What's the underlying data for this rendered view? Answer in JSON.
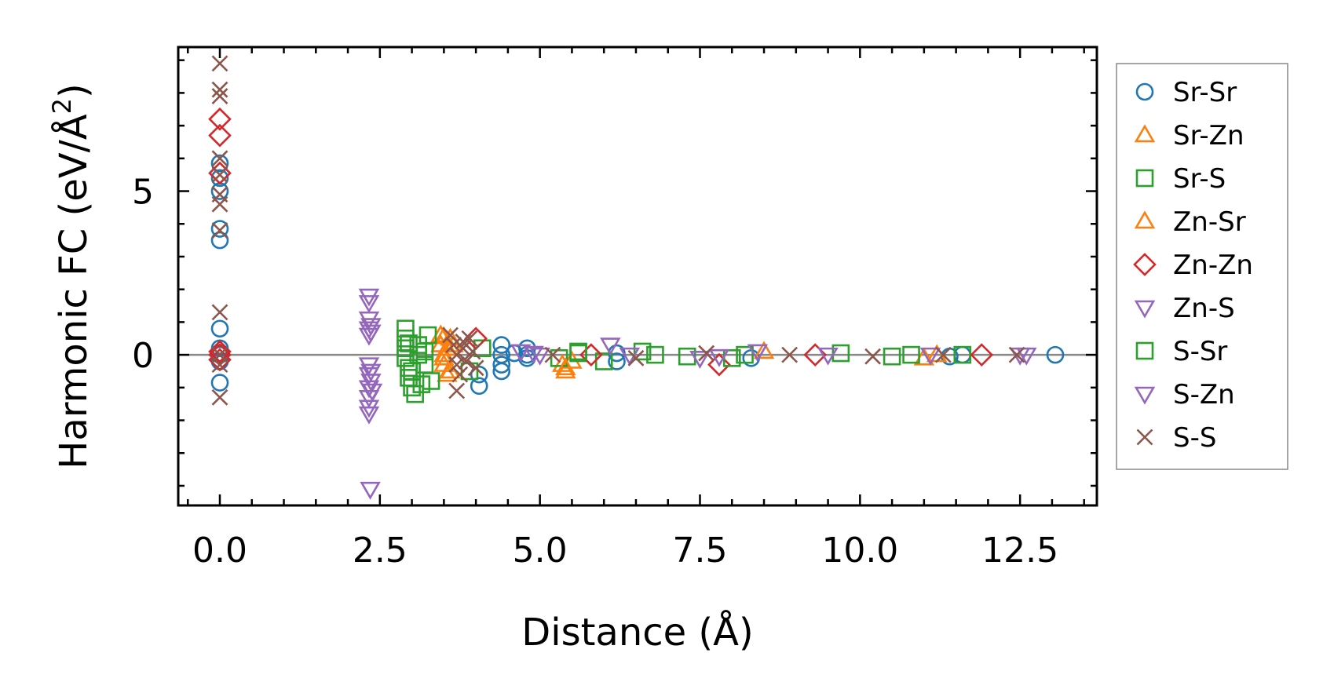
{
  "chart_data": {
    "type": "scatter",
    "title": "",
    "xlabel": "Distance (Å)",
    "ylabel_main": "Harmonic FC (eV/Å",
    "ylabel_sup": "2",
    "ylabel_end": ")",
    "xlim": [
      -0.65,
      13.7
    ],
    "ylim": [
      -4.6,
      9.4
    ],
    "xticks": [
      0.0,
      2.5,
      5.0,
      7.5,
      10.0,
      12.5
    ],
    "xtick_labels": [
      "0.0",
      "2.5",
      "5.0",
      "7.5",
      "10.0",
      "12.5"
    ],
    "yticks": [
      0,
      5
    ],
    "ytick_labels": [
      "0",
      "5"
    ],
    "grid": false,
    "zero_line": true,
    "legend_position": "outside-right",
    "series": [
      {
        "name": "Sr-Sr",
        "marker": "circle",
        "color": "#1f77b4",
        "x": [
          0,
          0,
          0,
          0,
          0,
          0,
          0,
          0,
          0,
          0,
          0,
          4.05,
          4.05,
          4.4,
          4.4,
          4.4,
          4.4,
          4.6,
          4.8,
          4.8,
          4.8,
          6.2,
          6.2,
          8.3,
          11.4,
          11.6,
          13.05
        ],
        "y": [
          5.85,
          5.4,
          5.0,
          3.85,
          3.5,
          0.8,
          0.2,
          0.05,
          -0.2,
          -0.85,
          0.0,
          -0.6,
          -0.95,
          0.3,
          0.0,
          -0.3,
          -0.5,
          0.05,
          0.2,
          -0.1,
          0.0,
          -0.2,
          0.05,
          -0.1,
          -0.05,
          0.0,
          0.0
        ]
      },
      {
        "name": "Sr-Zn",
        "marker": "triangle-up",
        "color": "#ff7f0e",
        "x": [
          3.45,
          3.45,
          3.5,
          3.5,
          3.55,
          3.6,
          5.35,
          5.4,
          5.5,
          8.5,
          11.0,
          11.2
        ],
        "y": [
          0.6,
          0.3,
          0.0,
          -0.3,
          -0.6,
          0.5,
          -0.3,
          -0.5,
          -0.2,
          0.1,
          -0.1,
          0.0
        ]
      },
      {
        "name": "Sr-S",
        "marker": "square",
        "color": "#2ca02c",
        "x": [
          2.9,
          2.9,
          2.9,
          2.9,
          2.95,
          2.95,
          3.0,
          3.05,
          3.1,
          3.2,
          3.2,
          3.3,
          3.9,
          4.1,
          5.3,
          5.6,
          6.0,
          6.6,
          7.3,
          8.2,
          9.7,
          10.5,
          11.6
        ],
        "y": [
          0.8,
          0.5,
          0.2,
          -0.1,
          -0.4,
          -0.7,
          -1.0,
          -1.2,
          0.3,
          -0.3,
          0.1,
          -0.8,
          -0.5,
          0.2,
          -0.1,
          0.05,
          -0.2,
          0.1,
          -0.05,
          0.0,
          0.05,
          -0.05,
          0.0
        ]
      },
      {
        "name": "Zn-Sr",
        "marker": "triangle-up",
        "color": "#ff7f0e",
        "x": [
          3.5,
          3.5,
          3.55,
          3.6,
          3.65,
          5.4
        ],
        "y": [
          0.55,
          -0.1,
          0.2,
          -0.5,
          0.3,
          -0.4
        ]
      },
      {
        "name": "Zn-Zn",
        "marker": "diamond",
        "color": "#d62728",
        "x": [
          0,
          0,
          0,
          0,
          0,
          0,
          4.0,
          5.8,
          7.8,
          9.3,
          11.9
        ],
        "y": [
          7.2,
          6.7,
          5.55,
          0.1,
          0.0,
          -0.15,
          0.5,
          0.0,
          -0.3,
          0.0,
          0.0
        ]
      },
      {
        "name": "Zn-S",
        "marker": "triangle-down",
        "color": "#9467bd",
        "x": [
          2.33,
          2.33,
          2.33,
          2.33,
          2.33,
          2.33,
          2.33,
          2.33,
          2.33,
          2.33,
          2.33,
          2.35,
          2.36,
          2.36,
          4.7,
          5.0,
          6.1,
          7.5,
          8.4,
          9.5,
          11.1,
          12.5
        ],
        "y": [
          1.8,
          1.6,
          1.1,
          0.8,
          0.6,
          -0.3,
          -0.6,
          -1.0,
          -1.3,
          -1.6,
          -1.8,
          -4.1,
          0.7,
          -0.8,
          0.1,
          0.0,
          0.3,
          -0.1,
          0.1,
          0.0,
          0.0,
          0.0
        ]
      },
      {
        "name": "S-Sr",
        "marker": "square",
        "color": "#2ca02c",
        "x": [
          2.95,
          3.0,
          3.1,
          3.15,
          3.25,
          5.6,
          6.8,
          8.0,
          10.8
        ],
        "y": [
          0.35,
          -0.5,
          0.0,
          -0.9,
          0.6,
          0.1,
          0.0,
          -0.1,
          0.0
        ]
      },
      {
        "name": "S-Zn",
        "marker": "triangle-down",
        "color": "#9467bd",
        "x": [
          2.36,
          2.36,
          2.38,
          4.9,
          6.4,
          7.8,
          12.6
        ],
        "y": [
          0.9,
          -0.5,
          -1.1,
          0.05,
          0.0,
          -0.05,
          0.0
        ]
      },
      {
        "name": "S-S",
        "marker": "x",
        "color": "#8c564b",
        "x": [
          0,
          0,
          0,
          0,
          0,
          0,
          0,
          0,
          0,
          0,
          0,
          0,
          3.6,
          3.65,
          3.7,
          3.7,
          3.75,
          3.8,
          3.85,
          3.9,
          3.95,
          4.0,
          3.7,
          3.8,
          5.2,
          6.5,
          7.6,
          8.9,
          10.2,
          11.3,
          12.45
        ],
        "y": [
          8.9,
          8.1,
          7.9,
          6.0,
          5.5,
          4.9,
          4.6,
          3.8,
          1.3,
          0.0,
          -0.3,
          -1.3,
          0.6,
          0.3,
          0.0,
          -0.3,
          -0.6,
          0.4,
          -0.2,
          0.5,
          0.1,
          -0.4,
          -1.1,
          0.2,
          0.0,
          -0.1,
          0.05,
          0.0,
          -0.05,
          0.0,
          0.0
        ]
      }
    ]
  }
}
